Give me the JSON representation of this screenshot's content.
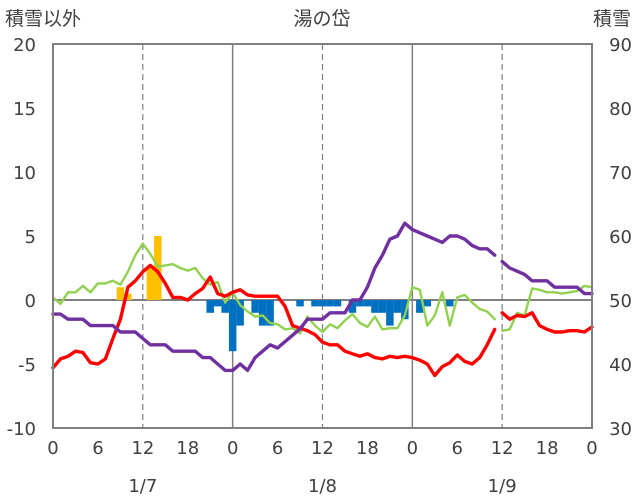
{
  "chart_data": {
    "type": "line",
    "title": "湯の岱",
    "left_axis_label": "積雪以外",
    "right_axis_label": "積雪",
    "ylim_left": [
      -10,
      20
    ],
    "yticks_left": [
      -10,
      -5,
      0,
      5,
      10,
      15,
      20
    ],
    "ylim_right": [
      30,
      90
    ],
    "yticks_right": [
      30,
      40,
      50,
      60,
      70,
      80,
      90
    ],
    "x_range_hours": [
      0,
      72
    ],
    "x_tick_labels": [
      "0",
      "6",
      "12",
      "18",
      "0",
      "6",
      "12",
      "18",
      "0",
      "6",
      "12",
      "18",
      "0"
    ],
    "date_labels": [
      {
        "hour": 12,
        "text": "1/7"
      },
      {
        "hour": 36,
        "text": "1/8"
      },
      {
        "hour": 60,
        "text": "1/9"
      }
    ],
    "grid": "dashed vertical at day hour 12, solid vertical at midnight, solid zero line",
    "bars_positive": {
      "color": "#ffc000",
      "points": [
        [
          9,
          1.0
        ],
        [
          10,
          0.5
        ],
        [
          13,
          2.5
        ],
        [
          14,
          5.0
        ]
      ]
    },
    "bars_negative": {
      "color": "#0070c0",
      "points": [
        [
          21,
          -1.0
        ],
        [
          22,
          -0.5
        ],
        [
          23,
          -1.0
        ],
        [
          24,
          -4.0
        ],
        [
          25,
          -2.0
        ],
        [
          27,
          -1.0
        ],
        [
          28,
          -2.0
        ],
        [
          29,
          -2.0
        ],
        [
          33,
          -0.5
        ],
        [
          35,
          -0.5
        ],
        [
          36,
          -0.5
        ],
        [
          37,
          -0.5
        ],
        [
          38,
          -0.5
        ],
        [
          40,
          -1.0
        ],
        [
          41,
          -0.5
        ],
        [
          42,
          -0.5
        ],
        [
          43,
          -1.0
        ],
        [
          44,
          -1.0
        ],
        [
          45,
          -2.0
        ],
        [
          46,
          -1.0
        ],
        [
          47,
          -1.5
        ],
        [
          49,
          -1.0
        ],
        [
          50,
          -0.5
        ],
        [
          53,
          -0.5
        ]
      ]
    },
    "series": [
      {
        "color": "#ff0000",
        "axis": "left",
        "segments": [
          [
            [
              0,
              -5.3
            ],
            [
              1,
              -4.6
            ],
            [
              2,
              -4.4
            ],
            [
              3,
              -4.0
            ],
            [
              4,
              -4.1
            ],
            [
              5,
              -4.9
            ],
            [
              6,
              -5.0
            ],
            [
              7,
              -4.6
            ],
            [
              8,
              -3.0
            ],
            [
              9,
              -1.5
            ],
            [
              10,
              1.0
            ],
            [
              11,
              1.5
            ],
            [
              12,
              2.2
            ],
            [
              13,
              2.7
            ],
            [
              14,
              2.2
            ],
            [
              15,
              1.3
            ],
            [
              16,
              0.2
            ],
            [
              17,
              0.2
            ],
            [
              18,
              0.0
            ],
            [
              19,
              0.5
            ],
            [
              20,
              0.9
            ],
            [
              21,
              1.8
            ],
            [
              22,
              0.5
            ],
            [
              23,
              0.3
            ],
            [
              24,
              0.6
            ],
            [
              25,
              0.8
            ],
            [
              26,
              0.4
            ],
            [
              27,
              0.3
            ],
            [
              28,
              0.3
            ],
            [
              29,
              0.3
            ],
            [
              30,
              0.3
            ],
            [
              31,
              -0.5
            ],
            [
              32,
              -2.0
            ],
            [
              33,
              -2.2
            ],
            [
              34,
              -2.4
            ],
            [
              35,
              -2.7
            ],
            [
              36,
              -3.3
            ],
            [
              37,
              -3.5
            ],
            [
              38,
              -3.5
            ],
            [
              39,
              -4.0
            ],
            [
              40,
              -4.2
            ],
            [
              41,
              -4.4
            ],
            [
              42,
              -4.2
            ],
            [
              43,
              -4.5
            ],
            [
              44,
              -4.6
            ],
            [
              45,
              -4.4
            ],
            [
              46,
              -4.5
            ],
            [
              47,
              -4.4
            ],
            [
              48,
              -4.5
            ],
            [
              49,
              -4.7
            ],
            [
              50,
              -5.0
            ],
            [
              51,
              -5.9
            ],
            [
              52,
              -5.2
            ],
            [
              53,
              -4.9
            ],
            [
              54,
              -4.3
            ],
            [
              55,
              -4.8
            ],
            [
              56,
              -5.0
            ],
            [
              57,
              -4.5
            ],
            [
              58,
              -3.5
            ],
            [
              59,
              -2.3
            ]
          ],
          [
            [
              60,
              -1.0
            ],
            [
              61,
              -1.5
            ],
            [
              62,
              -1.2
            ],
            [
              63,
              -1.3
            ],
            [
              64,
              -1.0
            ],
            [
              65,
              -2.0
            ],
            [
              66,
              -2.3
            ],
            [
              67,
              -2.5
            ],
            [
              68,
              -2.5
            ],
            [
              69,
              -2.4
            ],
            [
              70,
              -2.4
            ],
            [
              71,
              -2.5
            ],
            [
              72,
              -2.1
            ]
          ]
        ]
      },
      {
        "color": "#92d050",
        "axis": "left",
        "segments": [
          [
            [
              0,
              0.2
            ],
            [
              1,
              -0.3
            ],
            [
              2,
              0.6
            ],
            [
              3,
              0.6
            ],
            [
              4,
              1.1
            ],
            [
              5,
              0.6
            ],
            [
              6,
              1.3
            ],
            [
              7,
              1.3
            ],
            [
              8,
              1.5
            ],
            [
              9,
              1.2
            ],
            [
              10,
              2.2
            ],
            [
              11,
              3.5
            ],
            [
              12,
              4.4
            ],
            [
              13,
              3.6
            ],
            [
              14,
              2.6
            ],
            [
              15,
              2.7
            ],
            [
              16,
              2.8
            ],
            [
              17,
              2.5
            ],
            [
              18,
              2.3
            ],
            [
              19,
              2.5
            ],
            [
              20,
              1.7
            ],
            [
              21,
              1.2
            ],
            [
              22,
              1.4
            ],
            [
              23,
              -0.2
            ],
            [
              24,
              0.6
            ],
            [
              25,
              -0.4
            ],
            [
              26,
              -0.9
            ],
            [
              27,
              -1.3
            ],
            [
              28,
              -1.2
            ],
            [
              29,
              -1.8
            ],
            [
              30,
              -1.9
            ],
            [
              31,
              -2.3
            ],
            [
              32,
              -2.2
            ],
            [
              33,
              -2.6
            ],
            [
              34,
              -1.3
            ],
            [
              35,
              -2.0
            ],
            [
              36,
              -2.5
            ],
            [
              37,
              -1.9
            ],
            [
              38,
              -2.2
            ],
            [
              39,
              -1.6
            ],
            [
              40,
              -1.1
            ],
            [
              41,
              -1.8
            ],
            [
              42,
              -2.1
            ],
            [
              43,
              -1.3
            ],
            [
              44,
              -2.3
            ],
            [
              45,
              -2.2
            ],
            [
              46,
              -2.2
            ],
            [
              47,
              -1.2
            ],
            [
              48,
              1.0
            ],
            [
              49,
              0.8
            ],
            [
              50,
              -2.0
            ],
            [
              51,
              -1.2
            ],
            [
              52,
              0.6
            ],
            [
              53,
              -2.0
            ],
            [
              54,
              0.2
            ],
            [
              55,
              0.4
            ],
            [
              56,
              -0.2
            ],
            [
              57,
              -0.7
            ],
            [
              58,
              -0.9
            ],
            [
              59,
              -1.5
            ]
          ],
          [
            [
              60,
              -2.4
            ],
            [
              61,
              -2.3
            ],
            [
              62,
              -1.0
            ],
            [
              63,
              -1.2
            ],
            [
              64,
              0.9
            ],
            [
              65,
              0.8
            ],
            [
              66,
              0.6
            ],
            [
              67,
              0.6
            ],
            [
              68,
              0.5
            ],
            [
              69,
              0.6
            ],
            [
              70,
              0.7
            ],
            [
              71,
              1.1
            ],
            [
              72,
              1.0
            ]
          ]
        ]
      },
      {
        "color": "#7030a0",
        "axis": "right",
        "segments": [
          [
            [
              0,
              47.8
            ],
            [
              1,
              47.8
            ],
            [
              2,
              47.0
            ],
            [
              3,
              47.0
            ],
            [
              4,
              47.0
            ],
            [
              5,
              46.0
            ],
            [
              6,
              46.0
            ],
            [
              7,
              46.0
            ],
            [
              8,
              46.0
            ],
            [
              9,
              45.0
            ],
            [
              10,
              45.0
            ],
            [
              11,
              45.0
            ],
            [
              12,
              44.0
            ],
            [
              13,
              43.0
            ],
            [
              14,
              43.0
            ],
            [
              15,
              43.0
            ],
            [
              16,
              42.0
            ],
            [
              17,
              42.0
            ],
            [
              18,
              42.0
            ],
            [
              19,
              42.0
            ],
            [
              20,
              41.0
            ],
            [
              21,
              41.0
            ],
            [
              22,
              40.0
            ],
            [
              23,
              39.0
            ],
            [
              24,
              39.0
            ],
            [
              25,
              40.0
            ],
            [
              26,
              39.0
            ],
            [
              27,
              41.0
            ],
            [
              28,
              42.0
            ],
            [
              29,
              43.0
            ],
            [
              30,
              42.5
            ],
            [
              31,
              43.5
            ],
            [
              32,
              44.5
            ],
            [
              33,
              45.5
            ],
            [
              34,
              47.0
            ],
            [
              35,
              47.0
            ],
            [
              36,
              47.0
            ],
            [
              37,
              48.0
            ],
            [
              38,
              48.0
            ],
            [
              39,
              48.0
            ],
            [
              40,
              50.0
            ],
            [
              41,
              50.0
            ],
            [
              42,
              52.0
            ],
            [
              43,
              55.0
            ],
            [
              44,
              57.0
            ],
            [
              45,
              59.5
            ],
            [
              46,
              60.0
            ],
            [
              47,
              62.0
            ],
            [
              48,
              61.0
            ],
            [
              49,
              60.5
            ],
            [
              50,
              60.0
            ],
            [
              51,
              59.5
            ],
            [
              52,
              59.0
            ],
            [
              53,
              60.0
            ],
            [
              54,
              60.0
            ],
            [
              55,
              59.5
            ],
            [
              56,
              58.5
            ],
            [
              57,
              58.0
            ],
            [
              58,
              58.0
            ],
            [
              59,
              57.0
            ]
          ],
          [
            [
              60,
              56.0
            ],
            [
              61,
              55.0
            ],
            [
              62,
              54.5
            ],
            [
              63,
              54.0
            ],
            [
              64,
              53.0
            ],
            [
              65,
              53.0
            ],
            [
              66,
              53.0
            ],
            [
              67,
              52.0
            ],
            [
              68,
              52.0
            ],
            [
              69,
              52.0
            ],
            [
              70,
              52.0
            ],
            [
              71,
              51.0
            ],
            [
              72,
              51.0
            ]
          ]
        ]
      }
    ]
  }
}
